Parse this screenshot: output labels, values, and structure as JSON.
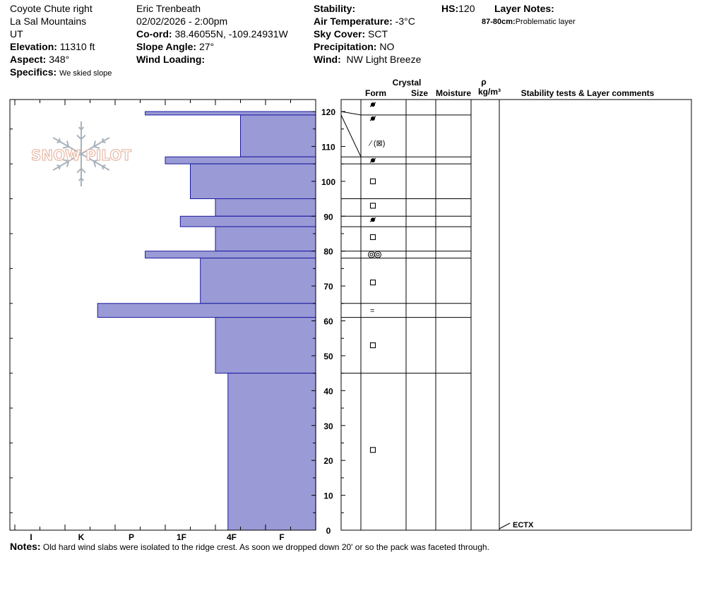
{
  "header": {
    "location": "Coyote Chute right",
    "range": "La Sal Mountains",
    "state": "UT",
    "elevation_label": "Elevation:",
    "elevation": "11310 ft",
    "aspect_label": "Aspect:",
    "aspect": "348°",
    "specifics_label": "Specifics:",
    "specifics": "We skied slope",
    "observer": "Eric Trenbeath",
    "datetime": "02/02/2026 - 2:00pm",
    "coord_label": "Co-ord:",
    "coord": "38.46055N, -109.24931W",
    "slope_label": "Slope Angle:",
    "slope": "27°",
    "wind_loading_label": "Wind Loading:",
    "stability_label": "Stability:",
    "air_temp_label": "Air Temperature:",
    "air_temp": "-3°C",
    "sky_label": "Sky Cover:",
    "sky": "SCT",
    "precip_label": "Precipitation:",
    "precip": "NO",
    "wind_label": "Wind:",
    "wind": "NW Light Breeze",
    "hs_label": "HS:",
    "hs": "120",
    "layer_notes_label": "Layer Notes:",
    "layer_note_range": "87-80cm:",
    "layer_note_text": "Problematic layer"
  },
  "columns": {
    "crystal": "Crystal",
    "form": "Form",
    "size": "Size",
    "moisture": "Moisture",
    "density_symbol": "ρ",
    "density_unit": "kg/m³",
    "comments": "Stability tests & Layer comments"
  },
  "notes_label": "Notes:",
  "notes": "Old hard wind slabs were isolated to the ridge crest. As soon we dropped down 20' or so the pack was faceted through.",
  "logo_text": "SNOW PILOT",
  "colors": {
    "fill": "#9a9ad6",
    "stroke": "#1a1aa0",
    "logo": "#e8b8a6",
    "flake": "#a8b2bc"
  },
  "chart_data": {
    "type": "bar",
    "orientation": "horizontal",
    "ylabel": "",
    "ylim": [
      0,
      120
    ],
    "y_ticks": [
      0,
      10,
      20,
      30,
      40,
      50,
      60,
      70,
      80,
      90,
      100,
      110,
      120
    ],
    "hardness_scale": [
      "F",
      "4F",
      "1F",
      "P",
      "K",
      "I"
    ],
    "hardness_tick_labels": [
      "I",
      "K",
      "P",
      "1F",
      "4F",
      "F"
    ],
    "hardness_max": 6,
    "layers": [
      {
        "top": 120,
        "bottom": 119,
        "hardness": 3.4,
        "form": "precip"
      },
      {
        "top": 119,
        "bottom": 107,
        "hardness": 1.5,
        "form": "precip"
      },
      {
        "top": 107,
        "bottom": 105,
        "hardness": 3.0,
        "form": "crust-facet"
      },
      {
        "top": 105,
        "bottom": 95,
        "hardness": 2.5,
        "form": "precip"
      },
      {
        "top": 95,
        "bottom": 90,
        "hardness": 2.0,
        "form": "facet"
      },
      {
        "top": 90,
        "bottom": 87,
        "hardness": 2.7,
        "form": "precip"
      },
      {
        "top": 87,
        "bottom": 80,
        "hardness": 2.0,
        "form": "facet"
      },
      {
        "top": 80,
        "bottom": 78,
        "hardness": 3.4,
        "form": "melt-forms"
      },
      {
        "top": 78,
        "bottom": 65,
        "hardness": 2.3,
        "form": "facet"
      },
      {
        "top": 65,
        "bottom": 61,
        "hardness": 4.35,
        "form": "rounded"
      },
      {
        "top": 61,
        "bottom": 45,
        "hardness": 2.0,
        "form": "facet"
      },
      {
        "top": 45,
        "bottom": 0,
        "hardness": 1.75,
        "form": "facet"
      }
    ],
    "crystal_forms": [
      {
        "depth": 122,
        "symbol": "precip"
      },
      {
        "depth": 118,
        "symbol": "precip"
      },
      {
        "depth": 111,
        "symbol": "crust-facet"
      },
      {
        "depth": 106,
        "symbol": "precip"
      },
      {
        "depth": 100,
        "symbol": "facet"
      },
      {
        "depth": 93,
        "symbol": "facet"
      },
      {
        "depth": 89,
        "symbol": "precip"
      },
      {
        "depth": 84,
        "symbol": "facet"
      },
      {
        "depth": 79,
        "symbol": "melt-forms"
      },
      {
        "depth": 71,
        "symbol": "facet"
      },
      {
        "depth": 63,
        "symbol": "rounded"
      },
      {
        "depth": 53,
        "symbol": "facet"
      },
      {
        "depth": 23,
        "symbol": "facet"
      }
    ],
    "symbol_text": {
      "crust-facet": "⁄ (⊠)",
      "rounded": "="
    },
    "stability_tests": [
      {
        "depth": 0,
        "label": "ECTX"
      }
    ]
  }
}
